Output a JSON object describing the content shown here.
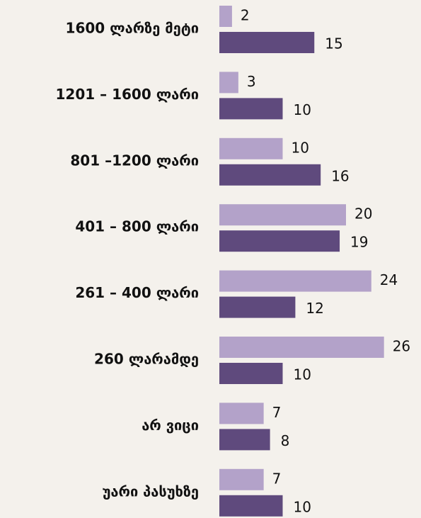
{
  "chart_data": {
    "type": "bar",
    "orientation": "horizontal",
    "categories": [
      "1600 ლარზე მეტი",
      "1201 – 1600 ლარი",
      "801 –1200 ლარი",
      "401 – 800 ლარი",
      "261 – 400 ლარი",
      "260 ლარამდე",
      "არ ვიცი",
      "უარი პასუხზე"
    ],
    "series": [
      {
        "color": "#b3a2c9",
        "values": [
          2,
          3,
          10,
          20,
          24,
          26,
          7,
          7
        ]
      },
      {
        "color": "#5f4a7d",
        "values": [
          15,
          10,
          16,
          19,
          12,
          10,
          8,
          10
        ]
      }
    ]
  }
}
